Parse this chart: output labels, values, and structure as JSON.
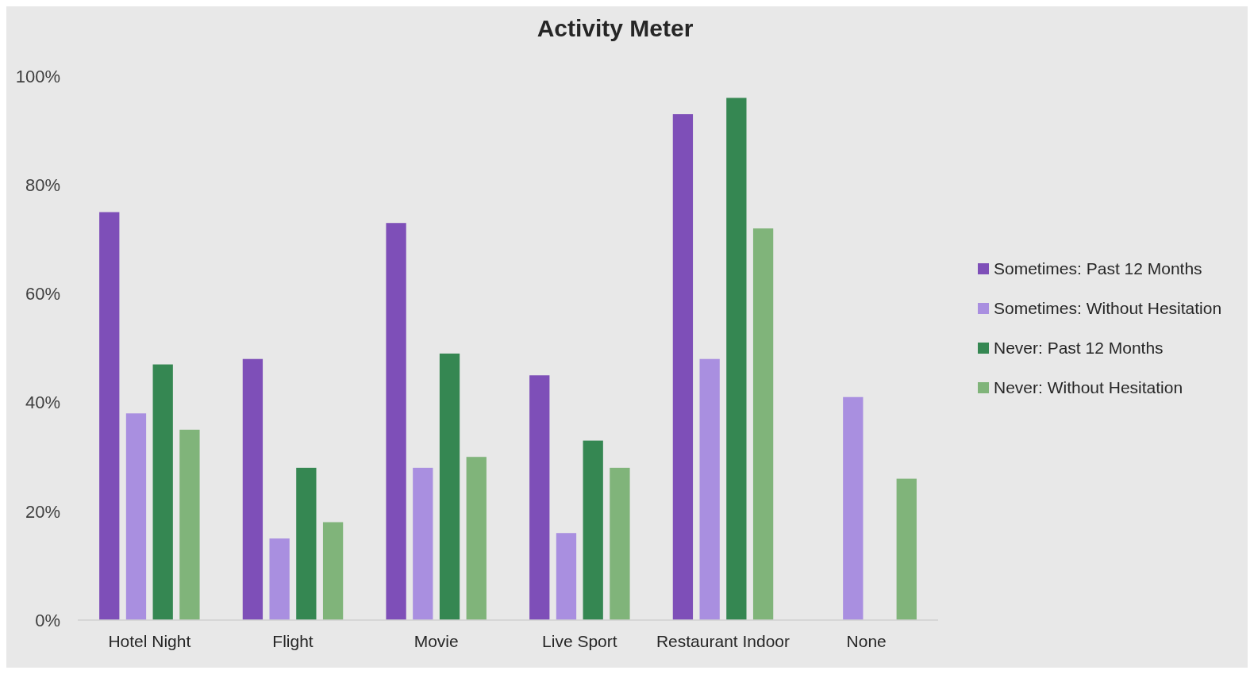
{
  "chart_data": {
    "type": "bar",
    "title": "Activity Meter",
    "categories": [
      "Hotel Night",
      "Flight",
      "Movie",
      "Live Sport",
      "Restaurant Indoor",
      "None"
    ],
    "series": [
      {
        "name": "Sometimes: Past 12 Months",
        "color": "#7e4fb8",
        "values": [
          75,
          48,
          73,
          45,
          93,
          null
        ]
      },
      {
        "name": "Sometimes: Without Hesitation",
        "color": "#a98fe0",
        "values": [
          38,
          15,
          28,
          16,
          48,
          41
        ]
      },
      {
        "name": "Never: Past 12 Months",
        "color": "#358752",
        "values": [
          47,
          28,
          49,
          33,
          96,
          null
        ]
      },
      {
        "name": "Never: Without Hesitation",
        "color": "#80b47a",
        "values": [
          35,
          18,
          30,
          28,
          72,
          26
        ]
      }
    ],
    "ylim": [
      0,
      100
    ],
    "yticks": [
      {
        "value": 0,
        "label": "0%"
      },
      {
        "value": 20,
        "label": "20%"
      },
      {
        "value": 40,
        "label": "40%"
      },
      {
        "value": 60,
        "label": "60%"
      },
      {
        "value": 80,
        "label": "80%"
      },
      {
        "value": 100,
        "label": "100%"
      }
    ],
    "grid": false,
    "legend": "right"
  }
}
